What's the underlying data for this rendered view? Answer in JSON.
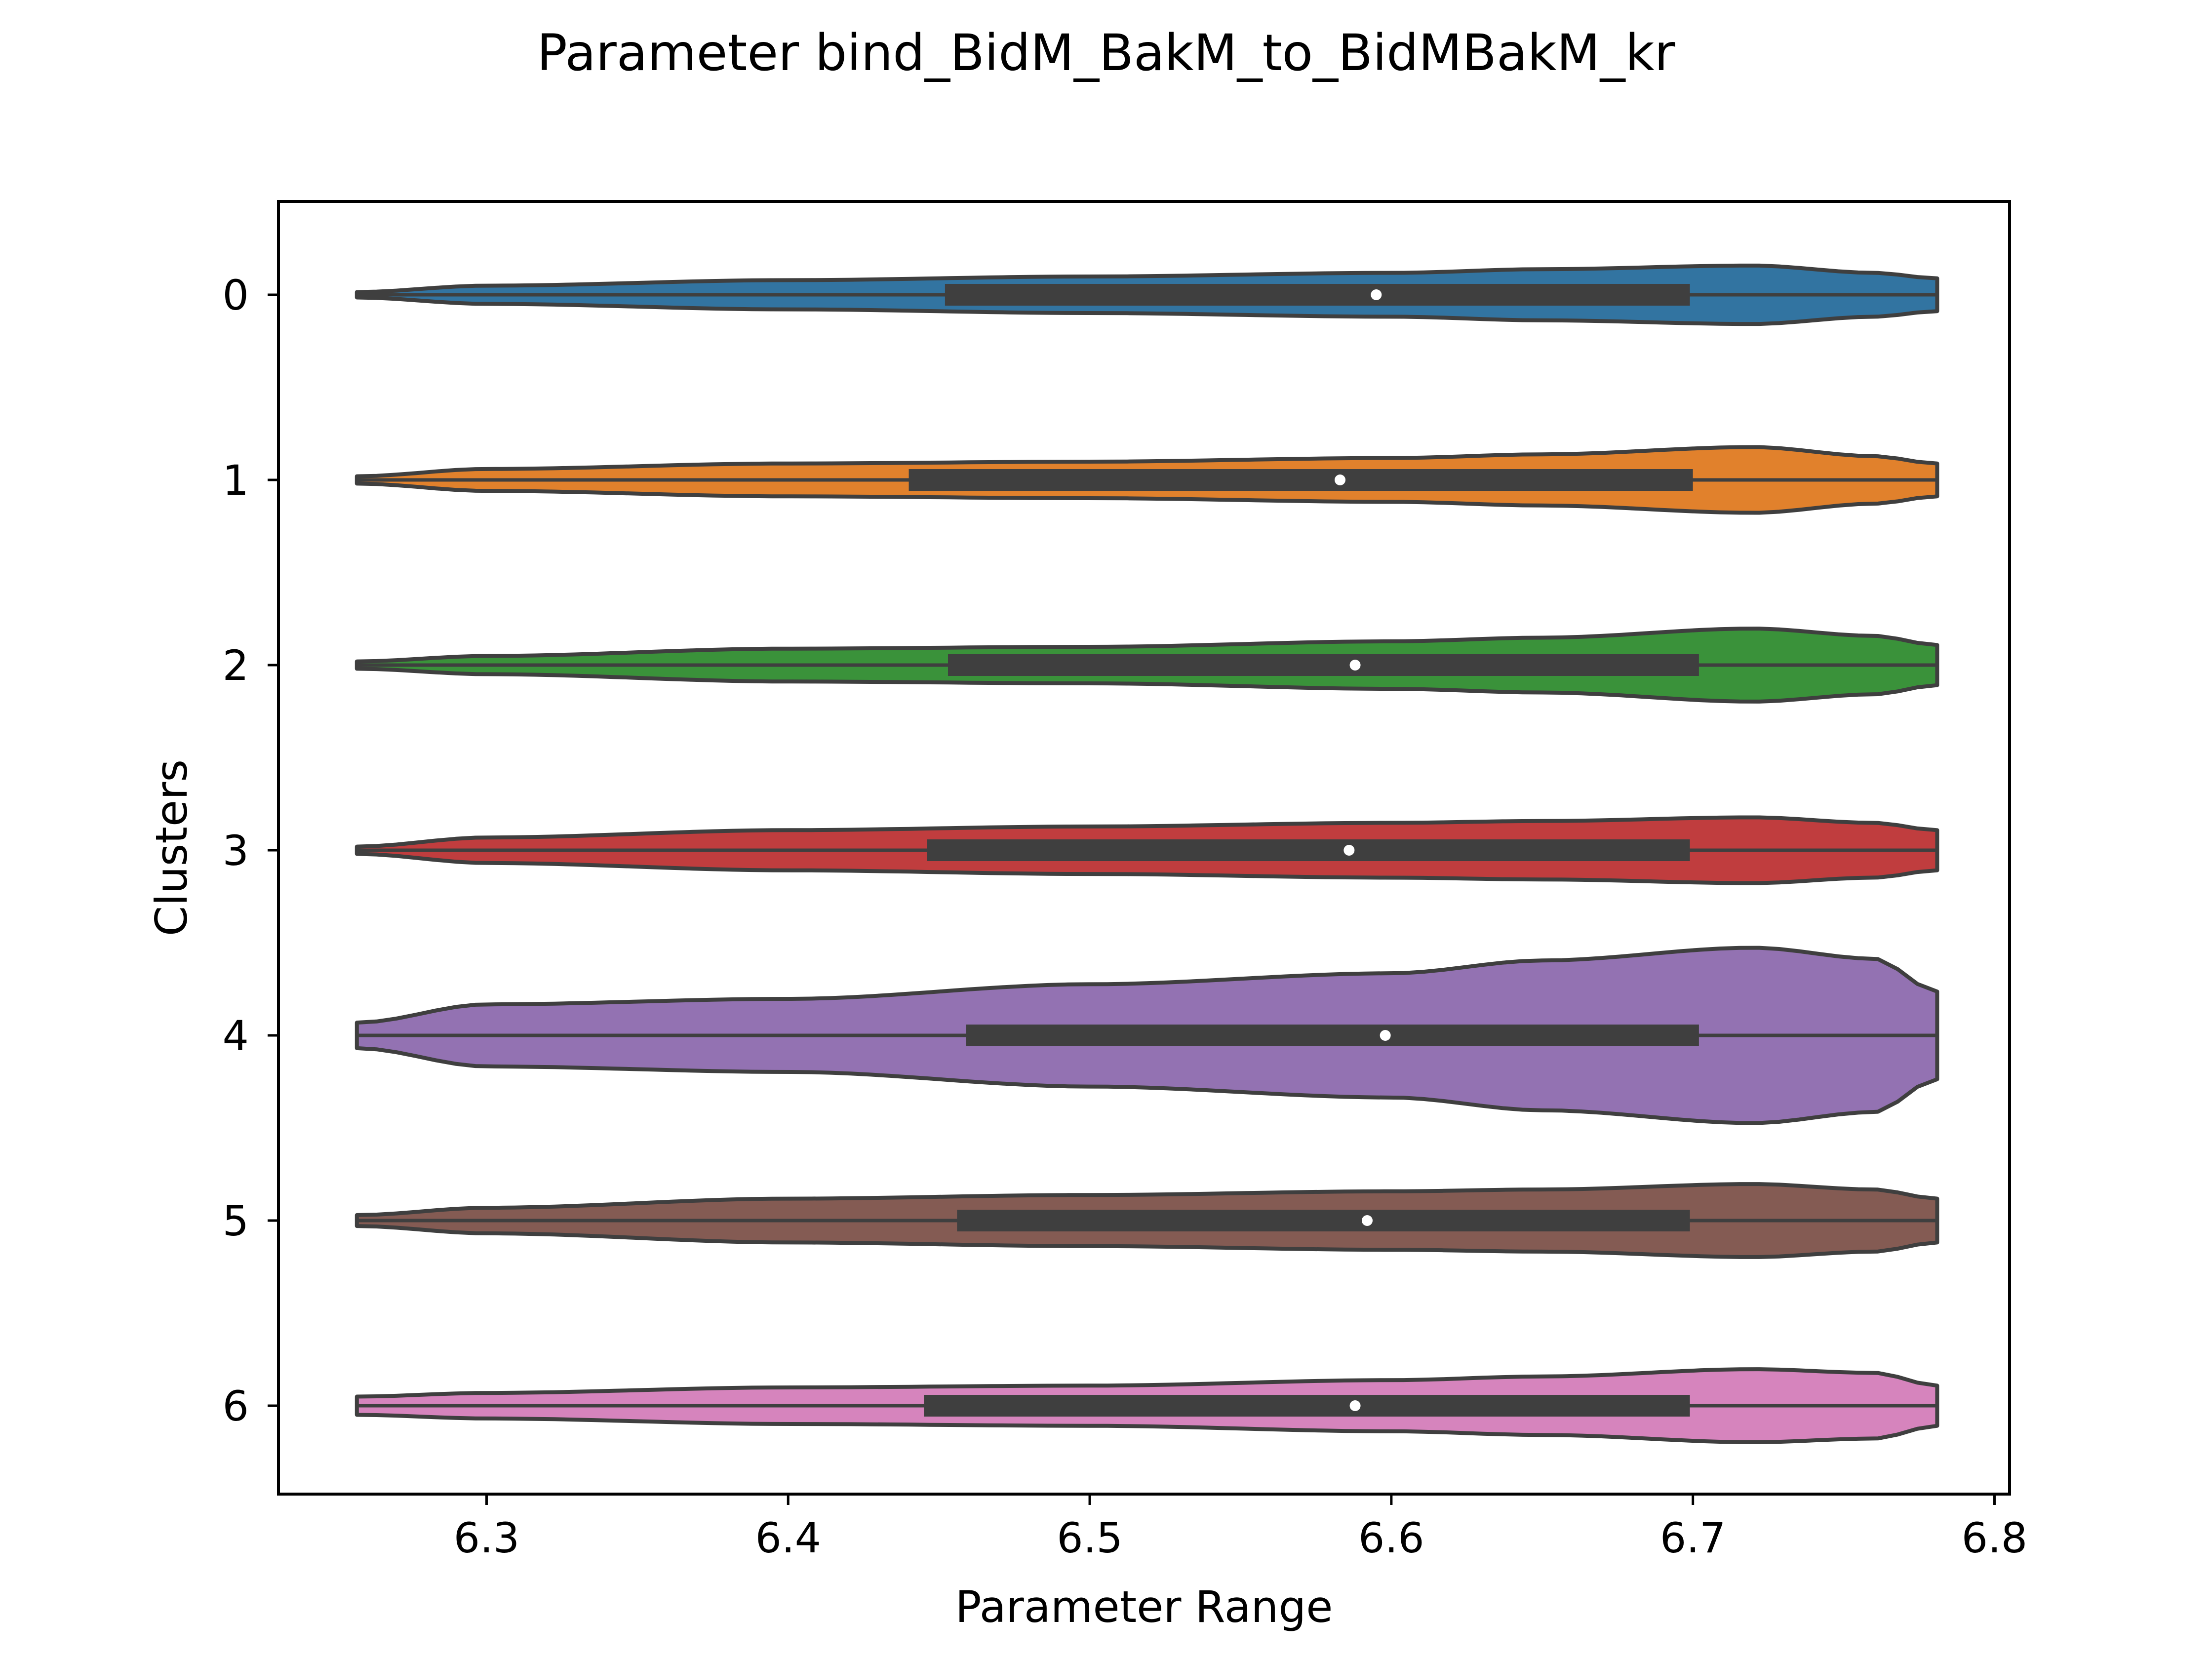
{
  "chart_data": {
    "type": "violin",
    "title": "Parameter bind_BidM_BakM_to_BidMBakM_kr",
    "xlabel": "Parameter Range",
    "ylabel": "Clusters",
    "orientation": "horizontal",
    "xlim": [
      6.231,
      6.805
    ],
    "x_ticks": [
      "6.3",
      "6.4",
      "6.5",
      "6.6",
      "6.7",
      "6.8"
    ],
    "categories": [
      "0",
      "1",
      "2",
      "3",
      "4",
      "5",
      "6"
    ],
    "violin_range": [
      6.257,
      6.781
    ],
    "outline_color": "#3f3f3f",
    "series": [
      {
        "name": "0",
        "color": "#3274a1",
        "q1": 6.452,
        "median": 6.595,
        "q3": 6.699,
        "density": [
          [
            6.257,
            0.015
          ],
          [
            6.3,
            0.05
          ],
          [
            6.4,
            0.08
          ],
          [
            6.5,
            0.1
          ],
          [
            6.6,
            0.12
          ],
          [
            6.65,
            0.14
          ],
          [
            6.72,
            0.16
          ],
          [
            6.76,
            0.12
          ],
          [
            6.781,
            0.09
          ]
        ]
      },
      {
        "name": "1",
        "color": "#e1812c",
        "q1": 6.44,
        "median": 6.583,
        "q3": 6.7,
        "density": [
          [
            6.257,
            0.02
          ],
          [
            6.3,
            0.06
          ],
          [
            6.4,
            0.09
          ],
          [
            6.5,
            0.1
          ],
          [
            6.6,
            0.12
          ],
          [
            6.65,
            0.14
          ],
          [
            6.72,
            0.18
          ],
          [
            6.76,
            0.13
          ],
          [
            6.781,
            0.09
          ]
        ]
      },
      {
        "name": "2",
        "color": "#3a923a",
        "q1": 6.453,
        "median": 6.588,
        "q3": 6.702,
        "density": [
          [
            6.257,
            0.02
          ],
          [
            6.3,
            0.05
          ],
          [
            6.4,
            0.09
          ],
          [
            6.5,
            0.1
          ],
          [
            6.6,
            0.13
          ],
          [
            6.65,
            0.15
          ],
          [
            6.72,
            0.2
          ],
          [
            6.76,
            0.16
          ],
          [
            6.781,
            0.11
          ]
        ]
      },
      {
        "name": "3",
        "color": "#c03d3e",
        "q1": 6.446,
        "median": 6.586,
        "q3": 6.699,
        "density": [
          [
            6.257,
            0.02
          ],
          [
            6.3,
            0.07
          ],
          [
            6.4,
            0.11
          ],
          [
            6.5,
            0.13
          ],
          [
            6.6,
            0.15
          ],
          [
            6.65,
            0.16
          ],
          [
            6.72,
            0.18
          ],
          [
            6.76,
            0.15
          ],
          [
            6.781,
            0.11
          ]
        ]
      },
      {
        "name": "4",
        "color": "#9372b2",
        "q1": 6.459,
        "median": 6.598,
        "q3": 6.702,
        "density": [
          [
            6.257,
            0.07
          ],
          [
            6.3,
            0.17
          ],
          [
            6.4,
            0.2
          ],
          [
            6.5,
            0.28
          ],
          [
            6.6,
            0.34
          ],
          [
            6.65,
            0.41
          ],
          [
            6.72,
            0.48
          ],
          [
            6.76,
            0.42
          ],
          [
            6.781,
            0.24
          ]
        ]
      },
      {
        "name": "5",
        "color": "#845b53",
        "q1": 6.456,
        "median": 6.592,
        "q3": 6.699,
        "density": [
          [
            6.257,
            0.03
          ],
          [
            6.3,
            0.07
          ],
          [
            6.4,
            0.12
          ],
          [
            6.5,
            0.14
          ],
          [
            6.6,
            0.16
          ],
          [
            6.65,
            0.17
          ],
          [
            6.72,
            0.2
          ],
          [
            6.76,
            0.17
          ],
          [
            6.781,
            0.12
          ]
        ]
      },
      {
        "name": "6",
        "color": "#d684bd",
        "q1": 6.445,
        "median": 6.588,
        "q3": 6.699,
        "density": [
          [
            6.257,
            0.05
          ],
          [
            6.3,
            0.07
          ],
          [
            6.4,
            0.1
          ],
          [
            6.5,
            0.11
          ],
          [
            6.6,
            0.14
          ],
          [
            6.65,
            0.16
          ],
          [
            6.72,
            0.2
          ],
          [
            6.76,
            0.18
          ],
          [
            6.781,
            0.11
          ]
        ]
      }
    ],
    "grid": false,
    "legend": "none"
  }
}
